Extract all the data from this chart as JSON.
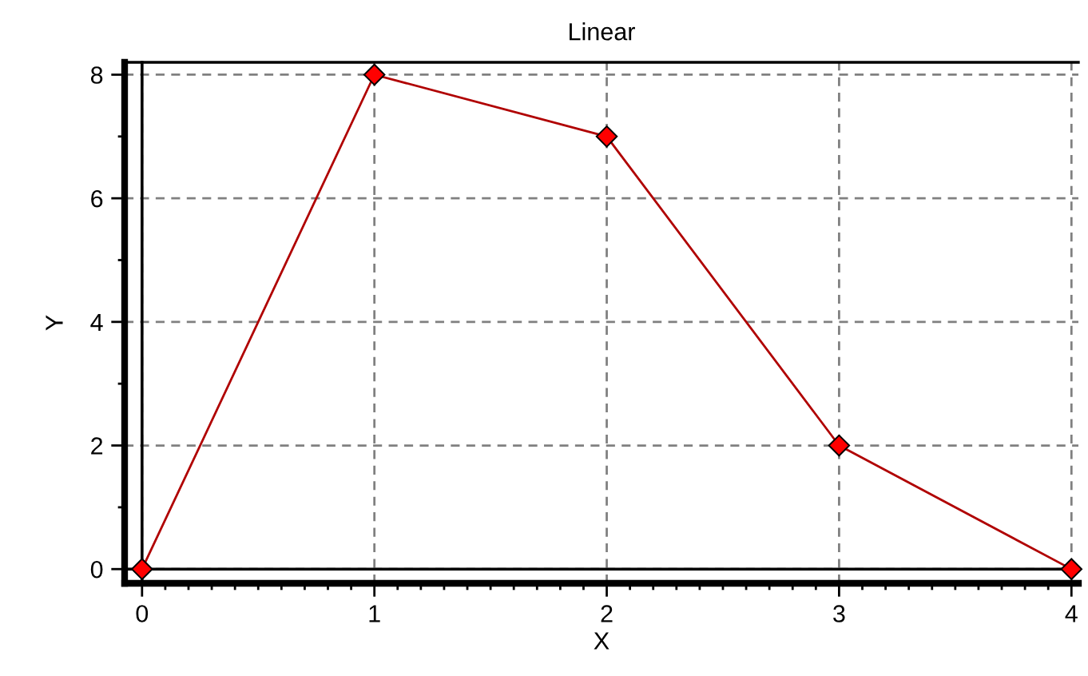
{
  "chart_data": {
    "type": "line",
    "title": "Linear",
    "xlabel": "X",
    "ylabel": "Y",
    "x": [
      0,
      1,
      2,
      3,
      4
    ],
    "series": [
      {
        "color": "#b00000",
        "values": [
          0,
          8,
          7,
          2,
          0
        ]
      }
    ],
    "marker": "diamond",
    "line_style": "solid",
    "grid": true,
    "legend": false,
    "xlim": [
      -0.075,
      4.03
    ],
    "ylim": [
      -0.23,
      8.2
    ],
    "xticks": [
      0,
      {
        "value": 0.1,
        "label": null
      },
      {
        "value": 0.2,
        "label": null
      },
      {
        "value": 0.3,
        "label": null
      },
      {
        "value": 0.4,
        "label": null
      },
      {
        "value": 0.5,
        "label": null
      },
      {
        "value": 0.6,
        "label": null
      },
      {
        "value": 0.7,
        "label": null
      },
      {
        "value": 0.8,
        "label": null
      },
      {
        "value": 0.9,
        "label": null
      },
      1,
      {
        "value": 1.1,
        "label": null
      },
      {
        "value": 1.2,
        "label": null
      },
      {
        "value": 1.3,
        "label": null
      },
      {
        "value": 1.4,
        "label": null
      },
      {
        "value": 1.5,
        "label": null
      },
      {
        "value": 1.6,
        "label": null
      },
      {
        "value": 1.7,
        "label": null
      },
      {
        "value": 1.8,
        "label": null
      },
      {
        "value": 1.9,
        "label": null
      },
      2,
      {
        "value": 2.1,
        "label": null
      },
      {
        "value": 2.2,
        "label": null
      },
      {
        "value": 2.3,
        "label": null
      },
      {
        "value": 2.4,
        "label": null
      },
      {
        "value": 2.5,
        "label": null
      },
      {
        "value": 2.6,
        "label": null
      },
      {
        "value": 2.7,
        "label": null
      },
      {
        "value": 2.8,
        "label": null
      },
      {
        "value": 2.9,
        "label": null
      },
      3,
      {
        "value": 3.1,
        "label": null
      },
      {
        "value": 3.2,
        "label": null
      },
      {
        "value": 3.3,
        "label": null
      },
      {
        "value": 3.4,
        "label": null
      },
      {
        "value": 3.5,
        "label": null
      },
      {
        "value": 3.6,
        "label": null
      },
      {
        "value": 3.7,
        "label": null
      },
      {
        "value": 3.8,
        "label": null
      },
      {
        "value": 3.9,
        "label": null
      },
      4
    ],
    "yticks": [
      0,
      {
        "value": 1,
        "label": null
      },
      2,
      {
        "value": 3,
        "label": null
      },
      4,
      {
        "value": 5,
        "label": null
      },
      6,
      {
        "value": 7,
        "label": null
      },
      8
    ]
  }
}
